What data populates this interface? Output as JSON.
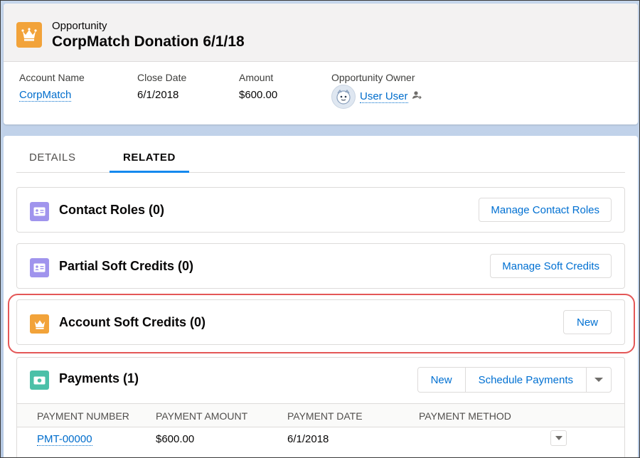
{
  "header": {
    "object_type": "Opportunity",
    "title": "CorpMatch Donation 6/1/18",
    "record_icon": "crown-icon",
    "fields": {
      "account_name": {
        "label": "Account Name",
        "value": "CorpMatch"
      },
      "close_date": {
        "label": "Close Date",
        "value": "6/1/2018"
      },
      "amount": {
        "label": "Amount",
        "value": "$600.00"
      },
      "owner": {
        "label": "Opportunity Owner",
        "value": "User User"
      }
    }
  },
  "tabs": [
    {
      "label": "DETAILS",
      "active": false
    },
    {
      "label": "RELATED",
      "active": true
    }
  ],
  "related_lists": {
    "contact_roles": {
      "title": "Contact Roles (0)",
      "icon": "contact-card-icon",
      "button": "Manage Contact Roles"
    },
    "partial_soft_credits": {
      "title": "Partial Soft Credits (0)",
      "icon": "contact-card-icon",
      "button": "Manage Soft Credits"
    },
    "account_soft_credits": {
      "title": "Account Soft Credits (0)",
      "icon": "crown-icon",
      "button": "New"
    },
    "payments": {
      "title": "Payments (1)",
      "icon": "money-icon",
      "buttons": {
        "new": "New",
        "schedule": "Schedule Payments"
      },
      "columns": [
        "PAYMENT NUMBER",
        "PAYMENT AMOUNT",
        "PAYMENT DATE",
        "PAYMENT METHOD"
      ],
      "rows": [
        {
          "number": "PMT-00000",
          "amount": "$600.00",
          "date": "6/1/2018",
          "method": ""
        }
      ]
    }
  },
  "colors": {
    "crown_icon_bg": "#f2a33a",
    "contact_icon_bg": "#a094ed",
    "money_icon_bg": "#4bc0a8",
    "link": "#006dcc",
    "highlight": "#e45757"
  }
}
